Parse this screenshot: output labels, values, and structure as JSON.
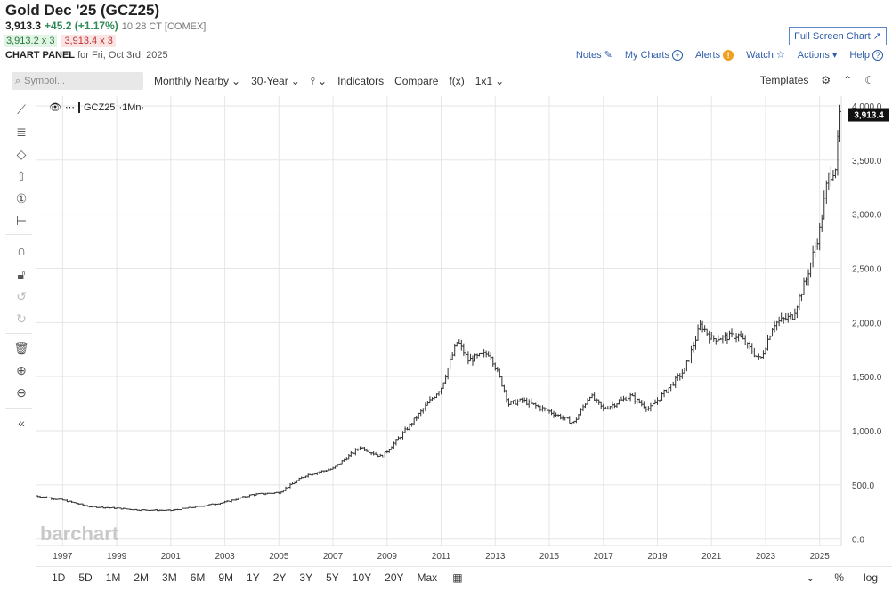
{
  "header": {
    "title": "Gold Dec '25 (GCZ25)",
    "last": "3,913.3",
    "change": "+45.2 (+1.17%)",
    "time": "10:28 CT [COMEX]",
    "bid": "3,913.2 x 3",
    "ask": "3,913.4 x 3",
    "panel_label": "CHART PANEL",
    "panel_date": "for Fri, Oct 3rd, 2025",
    "fullscreen_label": "Full Screen Chart"
  },
  "toplinks": {
    "notes": "Notes",
    "my_charts": "My Charts",
    "alerts": "Alerts",
    "watch": "Watch",
    "actions": "Actions",
    "help": "Help"
  },
  "toolbar": {
    "search_placeholder": "Symbol...",
    "aggregation": "Monthly Nearby",
    "period": "30-Year",
    "indicators": "Indicators",
    "compare": "Compare",
    "fx": "f(x)",
    "layout": "1x1",
    "templates": "Templates"
  },
  "legend": {
    "symbol": "GCZ25",
    "interval": "·1Mn·"
  },
  "chart_data": {
    "type": "ohlc",
    "symbol": "GCZ25",
    "interval": "Monthly",
    "watermark": "barchart",
    "last_price_label": "3,913.4",
    "y_ticks": [
      "4,000.0",
      "3,500.0",
      "3,000.0",
      "2,500.0",
      "2,000.0",
      "1,500.0",
      "1,000.0",
      "500.0",
      "0.0"
    ],
    "y_values": [
      4000,
      3500,
      3000,
      2500,
      2000,
      1500,
      1000,
      500,
      0
    ],
    "x_ticks": [
      "1997",
      "1999",
      "2001",
      "2003",
      "2005",
      "2007",
      "2009",
      "2011",
      "2013",
      "2015",
      "2017",
      "2019",
      "2021",
      "2023",
      "2025"
    ],
    "ylim": [
      -60,
      4090
    ],
    "xlim": [
      1996.0,
      2025.8
    ],
    "price_path": [
      [
        1996.0,
        400
      ],
      [
        1997.0,
        360
      ],
      [
        1998.0,
        300
      ],
      [
        1999.0,
        285
      ],
      [
        1999.8,
        270
      ],
      [
        2001.0,
        265
      ],
      [
        2002.0,
        300
      ],
      [
        2003.0,
        340
      ],
      [
        2004.0,
        410
      ],
      [
        2005.0,
        430
      ],
      [
        2006.0,
        590
      ],
      [
        2007.0,
        650
      ],
      [
        2008.0,
        850
      ],
      [
        2008.8,
        760
      ],
      [
        2009.5,
        950
      ],
      [
        2010.0,
        1100
      ],
      [
        2011.0,
        1400
      ],
      [
        2011.6,
        1830
      ],
      [
        2012.0,
        1650
      ],
      [
        2012.8,
        1720
      ],
      [
        2013.3,
        1400
      ],
      [
        2013.5,
        1250
      ],
      [
        2014.0,
        1280
      ],
      [
        2015.0,
        1180
      ],
      [
        2015.9,
        1070
      ],
      [
        2016.5,
        1330
      ],
      [
        2017.0,
        1200
      ],
      [
        2018.0,
        1320
      ],
      [
        2018.7,
        1200
      ],
      [
        2019.5,
        1420
      ],
      [
        2020.0,
        1560
      ],
      [
        2020.6,
        1980
      ],
      [
        2021.0,
        1850
      ],
      [
        2022.0,
        1880
      ],
      [
        2022.8,
        1650
      ],
      [
        2023.3,
        1990
      ],
      [
        2024.0,
        2060
      ],
      [
        2024.5,
        2400
      ],
      [
        2025.0,
        2850
      ],
      [
        2025.3,
        3330
      ],
      [
        2025.6,
        3450
      ],
      [
        2025.75,
        3913
      ]
    ]
  },
  "bottom": {
    "ranges": [
      "1D",
      "5D",
      "1M",
      "2M",
      "3M",
      "6M",
      "9M",
      "1Y",
      "2Y",
      "3Y",
      "5Y",
      "10Y",
      "20Y",
      "Max"
    ],
    "percent": "%",
    "log": "log"
  }
}
